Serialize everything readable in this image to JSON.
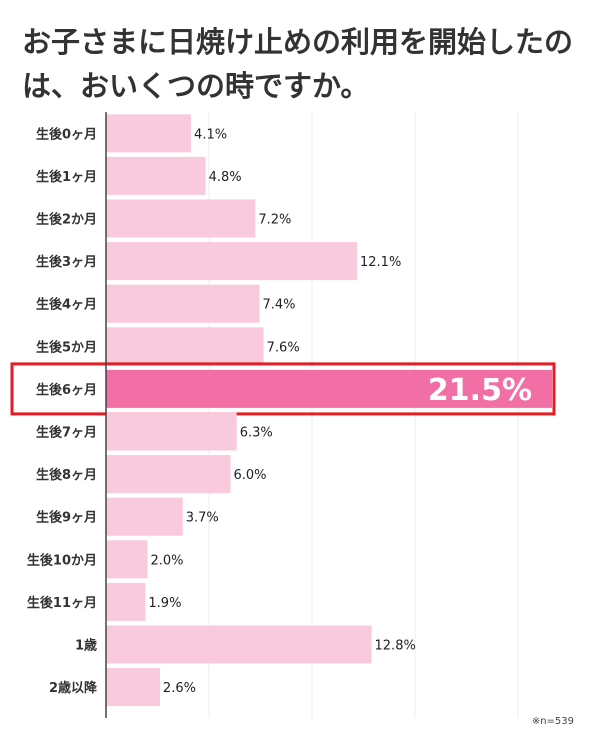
{
  "title": "お子さまに日焼け止めの利用を開始したのは、おいくつの時ですか。",
  "note": "※n=539",
  "chart_data": {
    "type": "bar",
    "orientation": "horizontal",
    "categories": [
      "生後0ヶ月",
      "生後1ヶ月",
      "生後2か月",
      "生後3ヶ月",
      "生後4ヶ月",
      "生後5か月",
      "生後6ヶ月",
      "生後7ヶ月",
      "生後8ヶ月",
      "生後9ヶ月",
      "生後10か月",
      "生後11ヶ月",
      "1歳",
      "2歳以降"
    ],
    "values": [
      4.1,
      4.8,
      7.2,
      12.1,
      7.4,
      7.6,
      21.5,
      6.3,
      6.0,
      3.7,
      2.0,
      1.9,
      12.8,
      2.6
    ],
    "labels": [
      "4.1%",
      "4.8%",
      "7.2%",
      "12.1%",
      "7.4%",
      "7.6%",
      "21.5%",
      "6.3%",
      "6.0%",
      "3.7%",
      "2.0%",
      "1.9%",
      "12.8%",
      "2.6%"
    ],
    "highlight_index": 6,
    "xlim": [
      0,
      21.5
    ],
    "grid": true,
    "colors": {
      "bar": "#f9c9dd",
      "highlight": "#f26fa5",
      "highlight_border": "#e51c23",
      "axis": "#444444",
      "grid": "#eeeeee"
    }
  }
}
